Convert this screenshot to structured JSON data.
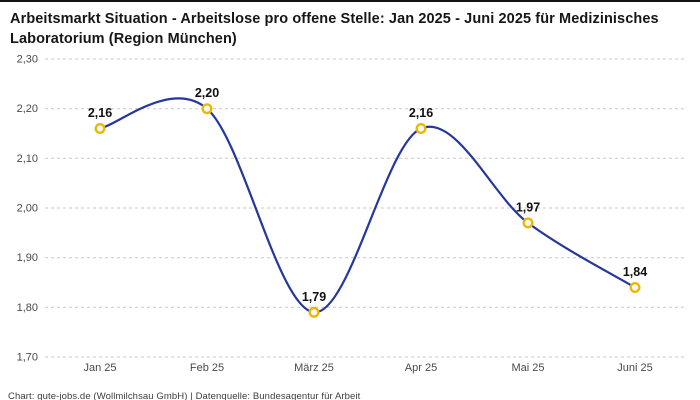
{
  "header": {
    "title": "Arbeitsmarkt Situation - Arbeitslose pro offene Stelle: Jan 2025 - Juni 2025 für Medizinisches Laboratorium (Region München)"
  },
  "footer": {
    "text": "Chart: gute-jobs.de (Wollmilchsau GmbH) | Datenquelle: Bundesagentur für Arbeit"
  },
  "chart_data": {
    "type": "line",
    "title": "Arbeitsmarkt Situation - Arbeitslose pro offene Stelle: Jan 2025 - Juni 2025 für Medizinisches Laboratorium (Region München)",
    "categories": [
      "Jan 25",
      "Feb 25",
      "März 25",
      "Apr 25",
      "Mai 25",
      "Juni 25"
    ],
    "values": [
      2.16,
      2.2,
      1.79,
      2.16,
      1.97,
      1.84
    ],
    "value_labels": [
      "2,16",
      "2,20",
      "1,79",
      "2,16",
      "1,97",
      "1,84"
    ],
    "ylim": [
      1.7,
      2.3
    ],
    "ytick_values": [
      2.3,
      2.2,
      2.1,
      2.0,
      1.9,
      1.8,
      1.7
    ],
    "ytick_labels": [
      "2,30",
      "2,20",
      "2,10",
      "2,00",
      "1,90",
      "1,80",
      "1,70"
    ],
    "grid": "horizontal-dashed",
    "legend": "none",
    "line_color": "#25379c",
    "grid_color": "#c9c9c9",
    "marker_stroke_color": "#eeb609",
    "marker_fill_color": "#fffdf5",
    "label_color": "#111111",
    "axis_text_color": "#4a4a4a"
  }
}
